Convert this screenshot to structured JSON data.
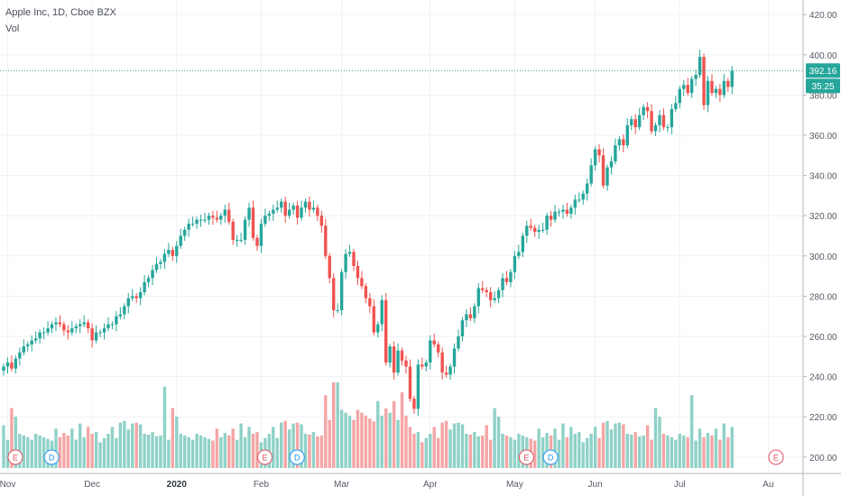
{
  "chart_data": {
    "type": "candlestick",
    "title": "Apple Inc, 1D, Cboe BZX",
    "volume_label": "Vol",
    "ylim": [
      195,
      425
    ],
    "y_ticks": [
      200,
      220,
      240,
      260,
      280,
      300,
      320,
      340,
      360,
      380,
      400,
      420
    ],
    "y_tick_labels": [
      "200.00",
      "220.00",
      "240.00",
      "260.00",
      "280.00",
      "300.00",
      "320.00",
      "340.00",
      "360.00",
      "380.00",
      "400.00",
      "420.00"
    ],
    "x_labels": [
      {
        "i": 1,
        "text": "Nov",
        "bold": false
      },
      {
        "i": 22,
        "text": "Dec",
        "bold": false
      },
      {
        "i": 43,
        "text": "2020",
        "bold": true
      },
      {
        "i": 64,
        "text": "Feb",
        "bold": false
      },
      {
        "i": 84,
        "text": "Mar",
        "bold": false
      },
      {
        "i": 106,
        "text": "Apr",
        "bold": false
      },
      {
        "i": 127,
        "text": "May",
        "bold": false
      },
      {
        "i": 147,
        "text": "Jun",
        "bold": false
      },
      {
        "i": 168,
        "text": "Jul",
        "bold": false
      },
      {
        "i": 190,
        "text": "Au",
        "bold": false
      }
    ],
    "last_price": "392.16",
    "last_price_value": 392.16,
    "countdown": "35:25",
    "markers": [
      {
        "i": 0,
        "text": "E",
        "color": "#e04f5f"
      },
      {
        "i": 9,
        "text": "D",
        "color": "#2196f3"
      },
      {
        "i": 62,
        "text": "E",
        "color": "#e04f5f"
      },
      {
        "i": 70,
        "text": "D",
        "color": "#2196f3"
      },
      {
        "i": 127,
        "text": "E",
        "color": "#e04f5f"
      },
      {
        "i": 133,
        "text": "D",
        "color": "#2196f3"
      },
      {
        "i": 189,
        "text": "E",
        "color": "#e04f5f"
      }
    ],
    "colors": {
      "up": "#26a69a",
      "down": "#ef5350",
      "vol_up": "#8fd1c7",
      "vol_down": "#f4a5a5",
      "grid": "#f0f1f4",
      "axis": "#b2b5be",
      "price_tag": "#26a69a"
    },
    "closes": [
      245,
      247,
      244,
      249,
      252,
      255,
      256,
      258,
      259,
      262,
      262,
      264,
      266,
      267,
      266,
      263,
      262,
      264,
      265,
      266,
      267,
      264,
      258,
      262,
      262,
      264,
      266,
      266,
      270,
      271,
      275,
      279,
      280,
      279,
      282,
      287,
      289,
      293,
      296,
      297,
      301,
      303,
      300,
      305,
      310,
      313,
      316,
      316,
      318,
      318,
      318,
      320,
      319,
      318,
      320,
      323,
      317,
      308,
      308,
      308,
      318,
      324,
      309,
      305,
      316,
      320,
      321,
      323,
      324,
      327,
      320,
      323,
      325,
      319,
      324,
      327,
      323,
      324,
      320,
      315,
      300,
      289,
      273,
      273,
      292,
      301,
      302,
      295,
      289,
      285,
      279,
      275,
      262,
      266,
      278,
      247,
      255,
      242,
      253,
      248,
      245,
      229,
      224,
      246,
      245,
      247,
      258,
      256,
      252,
      242,
      241,
      245,
      254,
      260,
      268,
      271,
      269,
      275,
      284,
      283,
      282,
      278,
      279,
      283,
      289,
      287,
      292,
      300,
      302,
      310,
      315,
      314,
      312,
      313,
      313,
      320,
      318,
      322,
      322,
      323,
      321,
      324,
      328,
      328,
      331,
      336,
      345,
      353,
      350,
      335,
      344,
      347,
      355,
      358,
      355,
      365,
      368,
      364,
      370,
      374,
      372,
      362,
      365,
      370,
      364,
      364,
      373,
      376,
      383,
      385,
      381,
      388,
      390,
      399,
      375,
      387,
      381,
      383,
      380,
      387,
      384,
      392
    ],
    "volumes": [
      0.5,
      0.33,
      0.7,
      0.6,
      0.4,
      0.38,
      0.36,
      0.33,
      0.4,
      0.38,
      0.36,
      0.34,
      0.32,
      0.46,
      0.36,
      0.41,
      0.38,
      0.46,
      0.33,
      0.52,
      0.36,
      0.48,
      0.4,
      0.42,
      0.3,
      0.35,
      0.4,
      0.48,
      0.35,
      0.53,
      0.55,
      0.45,
      0.52,
      0.53,
      0.51,
      0.4,
      0.39,
      0.42,
      0.37,
      0.38
    ]
  }
}
